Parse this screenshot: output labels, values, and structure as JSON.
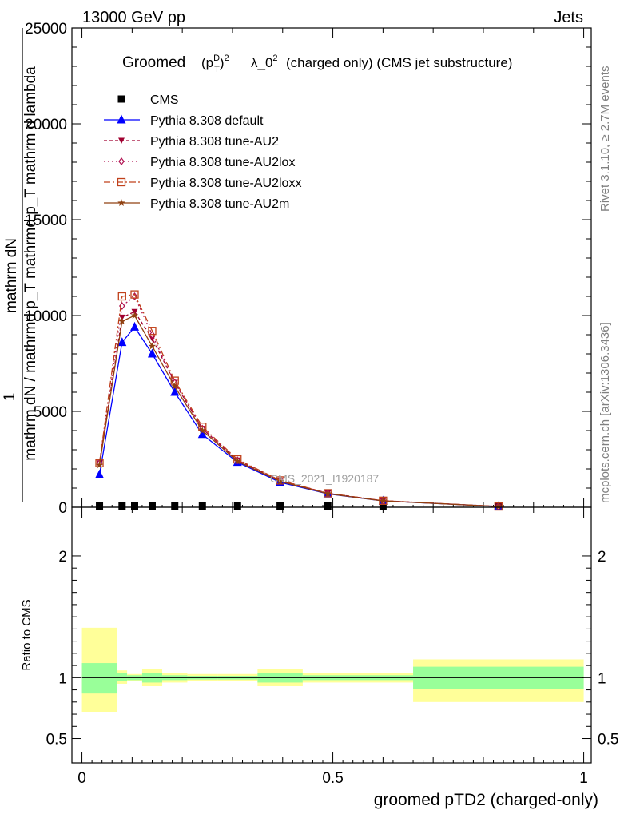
{
  "header": {
    "left": "13000 GeV pp",
    "right": "Jets"
  },
  "side_labels": {
    "rivet": "Rivet 3.1.10, ≥ 2.7M events",
    "mcplots": "mcplots.cern.ch [arXiv:1306.3436]"
  },
  "watermark": "CMS_2021_I1920187",
  "title": {
    "prefix": "Groomed",
    "suffix": "λ_0",
    "rest": "(charged only) (CMS jet substructure)"
  },
  "ylabel_main": {
    "numerator": "mathrm dN",
    "denominator": "mathrm dN / mathrmd p_T mathrmd p_T mathrm d lambda",
    "one": "1"
  },
  "ylabel_ratio": "Ratio to CMS",
  "xlabel": "groomed pTD2 (charged-only)",
  "colors": {
    "cms": "#000000",
    "default": "#0000ff",
    "au2": "#a00030",
    "au2lox": "#b01050",
    "au2loxx": "#c0401a",
    "au2m": "#904010",
    "band_inner": "#99ff99",
    "band_outer": "#ffff99"
  },
  "chart_data": [
    {
      "type": "line",
      "panel": "main",
      "xlim": [
        -0.02,
        1.015
      ],
      "ylim": [
        0,
        25000
      ],
      "yticks": [
        0,
        5000,
        10000,
        15000,
        20000,
        25000
      ],
      "ytick_labels": [
        "0",
        "5000",
        "10000",
        "15000",
        "20000",
        "25000"
      ],
      "x": [
        0.035,
        0.08,
        0.105,
        0.14,
        0.185,
        0.24,
        0.31,
        0.395,
        0.49,
        0.6,
        0.83
      ],
      "series": [
        {
          "name": "CMS",
          "key": "cms",
          "marker": "square",
          "dash": "none",
          "values": [
            20,
            20,
            20,
            20,
            20,
            20,
            20,
            20,
            20,
            20,
            20
          ]
        },
        {
          "name": "Pythia 8.308 default",
          "key": "default",
          "marker": "triangle-up",
          "dash": "none",
          "values": [
            1700,
            8600,
            9400,
            8000,
            6000,
            3800,
            2350,
            1300,
            700,
            330,
            40
          ]
        },
        {
          "name": "Pythia 8.308 tune-AU2",
          "key": "au2",
          "marker": "triangle-down",
          "dash": "4,3",
          "values": [
            2300,
            9900,
            10200,
            8800,
            6500,
            4100,
            2450,
            1400,
            730,
            340,
            40
          ]
        },
        {
          "name": "Pythia 8.308 tune-AU2lox",
          "key": "au2lox",
          "marker": "diamond",
          "dash": "2,3",
          "values": [
            2300,
            10500,
            11000,
            9000,
            6500,
            4100,
            2450,
            1400,
            730,
            340,
            40
          ]
        },
        {
          "name": "Pythia 8.308 tune-AU2loxx",
          "key": "au2loxx",
          "marker": "square-open",
          "dash": "8,3,2,3",
          "values": [
            2300,
            11000,
            11100,
            9200,
            6600,
            4200,
            2500,
            1400,
            730,
            340,
            40
          ]
        },
        {
          "name": "Pythia 8.308 tune-AU2m",
          "key": "au2m",
          "marker": "star",
          "dash": "none",
          "values": [
            2200,
            9700,
            10000,
            8400,
            6300,
            4000,
            2400,
            1350,
            710,
            330,
            40
          ]
        }
      ]
    },
    {
      "type": "area",
      "panel": "ratio",
      "xlim": [
        -0.02,
        1.015
      ],
      "ylim": [
        0.3,
        2.4
      ],
      "yticks": [
        0.5,
        1,
        2
      ],
      "ytick_labels": [
        "0.5",
        "1",
        "2"
      ],
      "xticks": [
        0,
        0.5,
        1
      ],
      "xtick_labels": [
        "0",
        "0.5",
        "1"
      ],
      "bins": [
        {
          "x0": 0.0,
          "x1": 0.07,
          "inner": [
            0.87,
            1.12
          ],
          "outer": [
            0.72,
            1.41
          ]
        },
        {
          "x0": 0.07,
          "x1": 0.09,
          "inner": [
            0.97,
            1.04
          ],
          "outer": [
            0.95,
            1.06
          ]
        },
        {
          "x0": 0.09,
          "x1": 0.12,
          "inner": [
            0.98,
            1.02
          ],
          "outer": [
            0.97,
            1.03
          ]
        },
        {
          "x0": 0.12,
          "x1": 0.16,
          "inner": [
            0.96,
            1.04
          ],
          "outer": [
            0.93,
            1.07
          ]
        },
        {
          "x0": 0.16,
          "x1": 0.21,
          "inner": [
            0.98,
            1.02
          ],
          "outer": [
            0.96,
            1.04
          ]
        },
        {
          "x0": 0.21,
          "x1": 0.27,
          "inner": [
            0.985,
            1.015
          ],
          "outer": [
            0.97,
            1.03
          ]
        },
        {
          "x0": 0.27,
          "x1": 0.35,
          "inner": [
            0.985,
            1.015
          ],
          "outer": [
            0.97,
            1.03
          ]
        },
        {
          "x0": 0.35,
          "x1": 0.44,
          "inner": [
            0.96,
            1.04
          ],
          "outer": [
            0.93,
            1.07
          ]
        },
        {
          "x0": 0.44,
          "x1": 0.66,
          "inner": [
            0.98,
            1.02
          ],
          "outer": [
            0.96,
            1.04
          ]
        },
        {
          "x0": 0.66,
          "x1": 1.0,
          "inner": [
            0.91,
            1.09
          ],
          "outer": [
            0.8,
            1.15
          ]
        }
      ]
    }
  ]
}
